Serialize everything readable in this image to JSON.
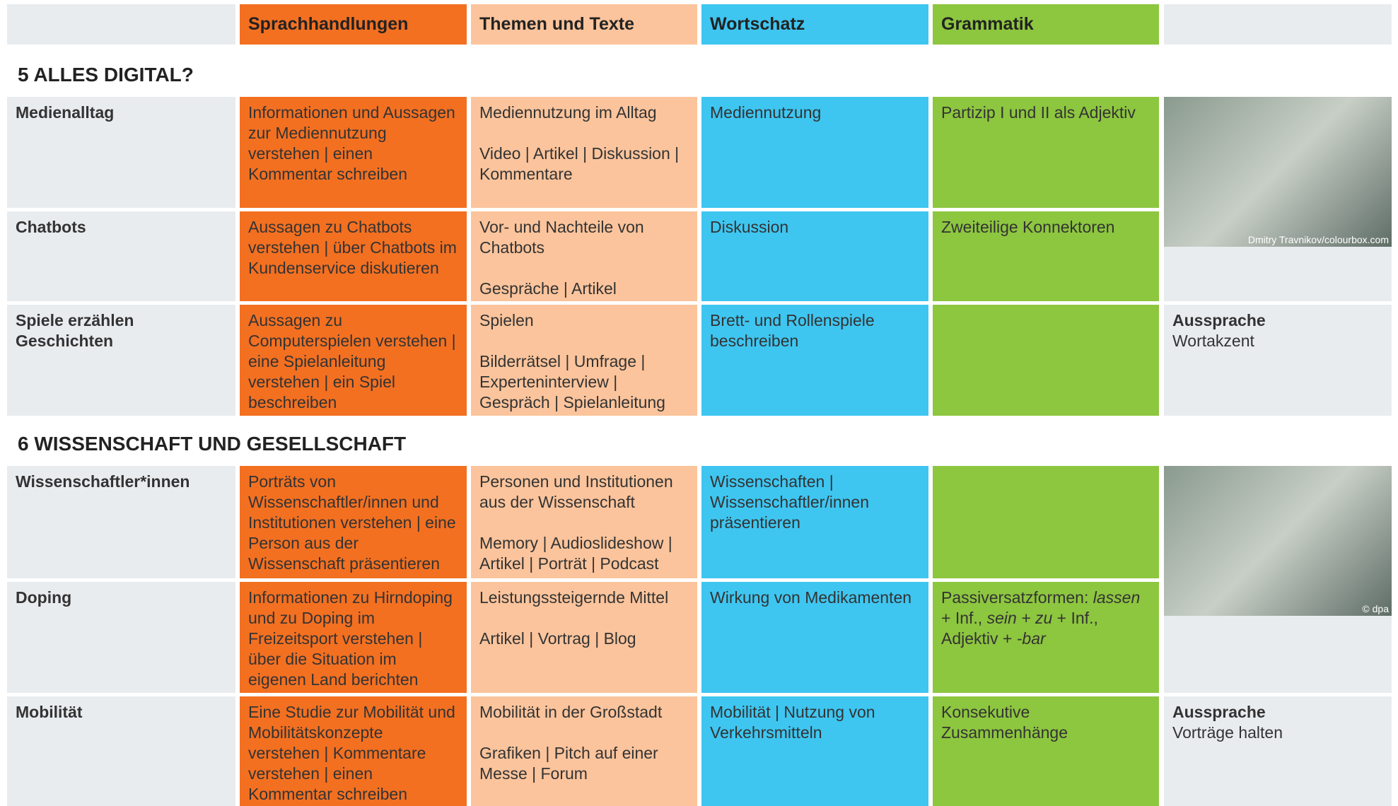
{
  "header": [
    "Sprachhandlungen",
    "Themen und Texte",
    "Wortschatz",
    "Grammatik"
  ],
  "sections": [
    {
      "title": "5 ALLES DIGITAL?",
      "photo_credit": "Dmitry Travnikov/colourbox.com",
      "rows": [
        {
          "topic": "Medienalltag",
          "cells": [
            [
              "Informationen und Aussagen zur Mediennutzung verstehen | einen Kommentar schreiben"
            ],
            [
              "Mediennutzung im Alltag",
              "Video | Artikel | Diskussion | Kommentare"
            ],
            [
              "Mediennutzung"
            ],
            [
              "Partizip I und II als Adjektiv"
            ]
          ]
        },
        {
          "topic": "Chatbots",
          "cells": [
            [
              "Aussagen zu Chatbots verstehen | über Chatbots im Kundenservice diskutieren"
            ],
            [
              "Vor- und Nachteile von Chatbots",
              "Gespräche | Artikel"
            ],
            [
              "Diskussion"
            ],
            [
              "Zweiteilige Konnektoren"
            ]
          ]
        },
        {
          "topic": "Spiele erzählen Geschichten",
          "cells": [
            [
              "Aussagen zu Computerspielen verstehen | eine Spielanleitung verstehen | ein Spiel beschreiben"
            ],
            [
              "Spielen",
              "Bilderrätsel | Umfrage | Experteninterview | Gespräch | Spielanleitung"
            ],
            [
              "Brett- und Rollenspiele beschreiben"
            ],
            []
          ],
          "pronunciation": {
            "label": "Aussprache",
            "text": "Wortakzent"
          }
        }
      ]
    },
    {
      "title": "6 WISSENSCHAFT UND GESELLSCHAFT",
      "photo_credit": "© dpa",
      "rows": [
        {
          "topic": "Wissenschaftler*innen",
          "cells": [
            [
              "Porträts von Wissenschaftler/innen und Institutionen verstehen | eine Person aus der Wissenschaft präsentieren"
            ],
            [
              "Personen und Institutionen aus der Wissenschaft",
              "Memory | Audioslideshow | Artikel | Porträt | Podcast"
            ],
            [
              "Wissenschaften | Wissenschaftler/innen präsentieren"
            ],
            []
          ]
        },
        {
          "topic": "Doping",
          "cells": [
            [
              "Informationen zu Hirndoping und zu Doping im Freizeitsport verstehen | über die Situation im eigenen Land berichten"
            ],
            [
              "Leistungssteigernde Mittel",
              "Artikel | Vortrag | Blog"
            ],
            [
              "Wirkung von Medikamenten"
            ],
            [
              [
                "Passiversatzformen: ",
                "lassen",
                " + Inf., ",
                "sein + zu",
                " + Inf., Adjektiv + ",
                "-bar"
              ]
            ]
          ]
        },
        {
          "topic": "Mobilität",
          "cells": [
            [
              "Eine Studie zur Mobilität und Mobilitätskonzepte verstehen | Kommentare verstehen | einen Kommentar schreiben"
            ],
            [
              "Mobilität in der Großstadt",
              "Grafiken | Pitch auf einer Messe | Forum"
            ],
            [
              "Mobilität | Nutzung von Verkehrsmitteln"
            ],
            [
              "Konsekutive Zusammenhänge"
            ]
          ],
          "pronunciation": {
            "label": "Aussprache",
            "text": "Vorträge halten"
          }
        }
      ]
    }
  ]
}
